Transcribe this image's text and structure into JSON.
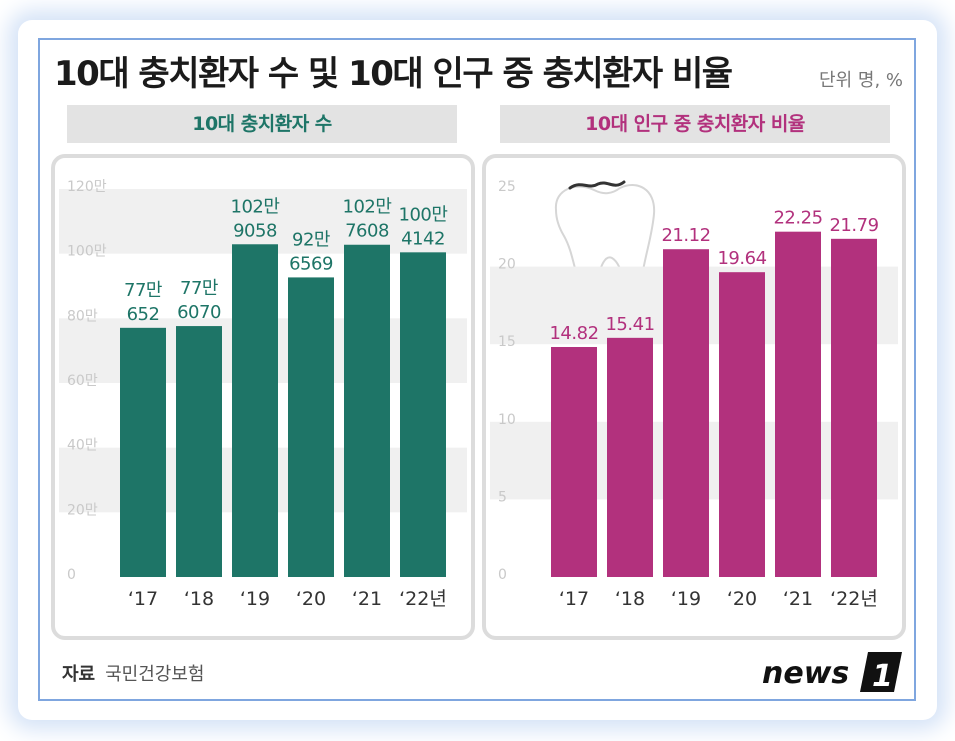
{
  "title": "10대 충치환자 수 및 10대 인구 중 충치환자 비율",
  "unit_note": "단위 명, %",
  "source": {
    "label": "자료",
    "name": "국민건강보험"
  },
  "logo": {
    "text": "news",
    "mark": "1"
  },
  "colors": {
    "teal": "#1e7567",
    "magenta": "#b2317d",
    "band": "#f0f0f0"
  },
  "chart_data": [
    {
      "type": "bar",
      "title": "10대 충치환자 수",
      "categories": [
        "‘17",
        "‘18",
        "‘19",
        "‘20",
        "‘21",
        "‘22년"
      ],
      "values": [
        770652,
        776070,
        1029058,
        926569,
        1027608,
        1004142
      ],
      "value_labels": [
        [
          "77만",
          "652"
        ],
        [
          "77만",
          "6070"
        ],
        [
          "102만",
          "9058"
        ],
        [
          "92만",
          "6569"
        ],
        [
          "102만",
          "7608"
        ],
        [
          "100만",
          "4142"
        ]
      ],
      "y_ticks": [
        "0",
        "20만",
        "40만",
        "60만",
        "80만",
        "100만",
        "120만"
      ],
      "ylim": [
        0,
        1200000
      ],
      "color": "#1e7567"
    },
    {
      "type": "bar",
      "title": "10대 인구 중 충치환자 비율",
      "categories": [
        "‘17",
        "‘18",
        "‘19",
        "‘20",
        "‘21",
        "‘22년"
      ],
      "values": [
        14.82,
        15.41,
        21.12,
        19.64,
        22.25,
        21.79
      ],
      "value_labels": [
        [
          "14.82"
        ],
        [
          "15.41"
        ],
        [
          "21.12"
        ],
        [
          "19.64"
        ],
        [
          "22.25"
        ],
        [
          "21.79"
        ]
      ],
      "y_ticks": [
        "0",
        "5",
        "10",
        "15",
        "20",
        "25"
      ],
      "ylim": [
        0,
        25
      ],
      "color": "#b2317d"
    }
  ]
}
